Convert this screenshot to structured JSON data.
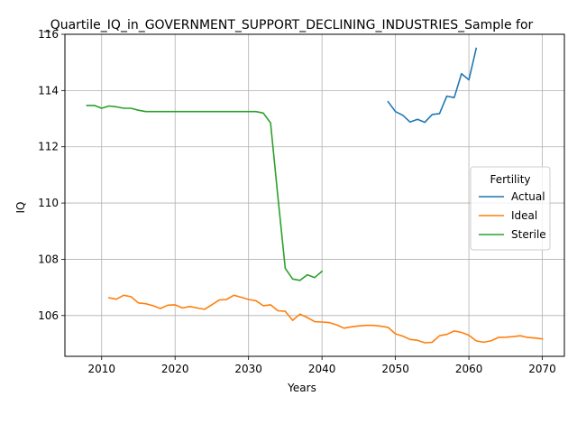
{
  "chart_data": {
    "type": "line",
    "title": "_Quartile_IQ_in_GOVERNMENT_SUPPORT_DECLINING_INDUSTRIES_Sample for",
    "xlabel": "Years",
    "ylabel": "IQ",
    "xlim": [
      2005,
      2073
    ],
    "ylim": [
      104.55,
      116
    ],
    "xticks": [
      2010,
      2020,
      2030,
      2040,
      2050,
      2060,
      2070
    ],
    "yticks": [
      106,
      108,
      110,
      112,
      114,
      116
    ],
    "xtick_labels": [
      "2010",
      "2020",
      "2030",
      "2040",
      "2050",
      "2060",
      "2070"
    ],
    "ytick_labels": [
      "106",
      "108",
      "110",
      "112",
      "114",
      "116"
    ],
    "grid": true,
    "legend": {
      "title": "Fertility",
      "position": "center-right"
    },
    "series": [
      {
        "name": "Actual",
        "color": "#1f77b4",
        "x": [
          2049,
          2050,
          2051,
          2052,
          2053,
          2054,
          2055,
          2056,
          2057,
          2058,
          2059,
          2060,
          2061
        ],
        "y": [
          113.6,
          113.25,
          113.12,
          112.88,
          112.98,
          112.87,
          113.15,
          113.18,
          113.8,
          113.75,
          114.6,
          114.38,
          115.5
        ]
      },
      {
        "name": "Ideal",
        "color": "#ff7f0e",
        "x": [
          2011,
          2012,
          2013,
          2014,
          2015,
          2016,
          2017,
          2018,
          2019,
          2020,
          2021,
          2022,
          2023,
          2024,
          2025,
          2026,
          2027,
          2028,
          2029,
          2030,
          2031,
          2032,
          2033,
          2034,
          2035,
          2036,
          2037,
          2038,
          2039,
          2040,
          2041,
          2042,
          2043,
          2044,
          2045,
          2046,
          2047,
          2048,
          2049,
          2050,
          2051,
          2052,
          2053,
          2054,
          2055,
          2056,
          2057,
          2058,
          2059,
          2060,
          2061,
          2062,
          2063,
          2064,
          2065,
          2066,
          2067,
          2068,
          2069,
          2070
        ],
        "y": [
          106.63,
          106.58,
          106.72,
          106.67,
          106.45,
          106.42,
          106.35,
          106.25,
          106.37,
          106.38,
          106.27,
          106.32,
          106.27,
          106.22,
          106.38,
          106.55,
          106.57,
          106.72,
          106.65,
          106.57,
          106.53,
          106.35,
          106.38,
          106.17,
          106.15,
          105.83,
          106.05,
          105.93,
          105.78,
          105.77,
          105.75,
          105.67,
          105.55,
          105.6,
          105.63,
          105.65,
          105.65,
          105.62,
          105.58,
          105.35,
          105.27,
          105.15,
          105.12,
          105.03,
          105.05,
          105.28,
          105.33,
          105.45,
          105.4,
          105.3,
          105.1,
          105.05,
          105.1,
          105.22,
          105.23,
          105.25,
          105.28,
          105.22,
          105.2,
          105.17
        ]
      },
      {
        "name": "Sterile",
        "color": "#2ca02c",
        "x": [
          2008,
          2009,
          2010,
          2011,
          2012,
          2013,
          2014,
          2015,
          2016,
          2017,
          2018,
          2019,
          2020,
          2021,
          2022,
          2023,
          2024,
          2025,
          2026,
          2027,
          2028,
          2029,
          2030,
          2031,
          2032,
          2033,
          2034,
          2035,
          2036,
          2037,
          2038,
          2039,
          2040
        ],
        "y": [
          113.47,
          113.47,
          113.37,
          113.45,
          113.42,
          113.37,
          113.37,
          113.3,
          113.25,
          113.25,
          113.25,
          113.25,
          113.25,
          113.25,
          113.25,
          113.25,
          113.25,
          113.25,
          113.25,
          113.25,
          113.25,
          113.25,
          113.25,
          113.25,
          113.2,
          112.85,
          110.2,
          107.68,
          107.3,
          107.25,
          107.45,
          107.35,
          107.57
        ]
      }
    ]
  }
}
